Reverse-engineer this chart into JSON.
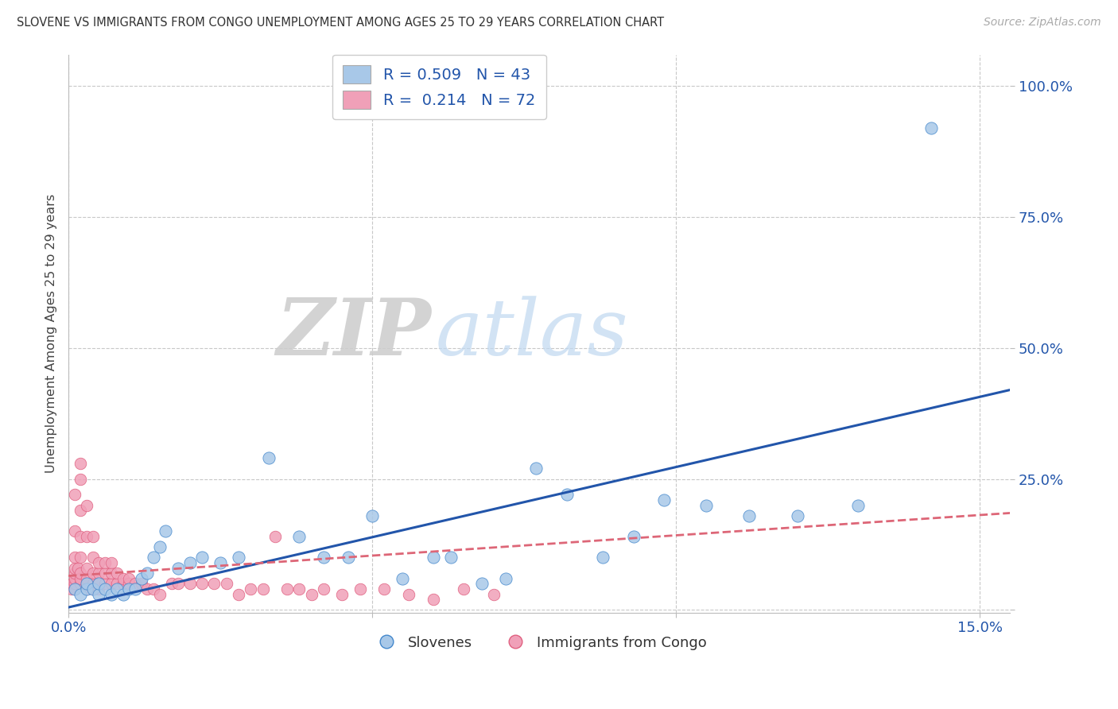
{
  "title": "SLOVENE VS IMMIGRANTS FROM CONGO UNEMPLOYMENT AMONG AGES 25 TO 29 YEARS CORRELATION CHART",
  "source": "Source: ZipAtlas.com",
  "ylabel": "Unemployment Among Ages 25 to 29 years",
  "xlim": [
    0.0,
    0.155
  ],
  "ylim": [
    -0.005,
    1.06
  ],
  "slovene_color": "#a8c8e8",
  "congo_color": "#f0a0b8",
  "slovene_edge_color": "#4488cc",
  "congo_edge_color": "#e06080",
  "slovene_line_color": "#2255aa",
  "congo_line_color": "#dd6677",
  "slovene_R": "0.509",
  "slovene_N": "43",
  "congo_R": "0.214",
  "congo_N": "72",
  "background_color": "#ffffff",
  "grid_color": "#c8c8c8",
  "slovene_trend_x0": 0.0,
  "slovene_trend_y0": 0.005,
  "slovene_trend_x1": 0.155,
  "slovene_trend_y1": 0.42,
  "congo_trend_x0": 0.0,
  "congo_trend_y0": 0.065,
  "congo_trend_x1": 0.155,
  "congo_trend_y1": 0.185,
  "slovene_x": [
    0.001,
    0.002,
    0.003,
    0.003,
    0.004,
    0.005,
    0.005,
    0.006,
    0.007,
    0.008,
    0.009,
    0.01,
    0.011,
    0.012,
    0.013,
    0.014,
    0.015,
    0.016,
    0.018,
    0.02,
    0.022,
    0.025,
    0.028,
    0.033,
    0.038,
    0.042,
    0.046,
    0.05,
    0.055,
    0.06,
    0.063,
    0.068,
    0.072,
    0.077,
    0.082,
    0.088,
    0.093,
    0.098,
    0.105,
    0.112,
    0.12,
    0.13,
    0.142
  ],
  "slovene_y": [
    0.04,
    0.03,
    0.04,
    0.05,
    0.04,
    0.03,
    0.05,
    0.04,
    0.03,
    0.04,
    0.03,
    0.04,
    0.04,
    0.06,
    0.07,
    0.1,
    0.12,
    0.15,
    0.08,
    0.09,
    0.1,
    0.09,
    0.1,
    0.29,
    0.14,
    0.1,
    0.1,
    0.18,
    0.06,
    0.1,
    0.1,
    0.05,
    0.06,
    0.27,
    0.22,
    0.1,
    0.14,
    0.21,
    0.2,
    0.18,
    0.18,
    0.2,
    0.92
  ],
  "congo_x": [
    0.0005,
    0.0007,
    0.001,
    0.001,
    0.001,
    0.001,
    0.001,
    0.001,
    0.001,
    0.001,
    0.0015,
    0.002,
    0.002,
    0.002,
    0.002,
    0.002,
    0.002,
    0.002,
    0.002,
    0.003,
    0.003,
    0.003,
    0.003,
    0.003,
    0.003,
    0.004,
    0.004,
    0.004,
    0.004,
    0.004,
    0.005,
    0.005,
    0.005,
    0.005,
    0.006,
    0.006,
    0.006,
    0.007,
    0.007,
    0.007,
    0.008,
    0.008,
    0.009,
    0.009,
    0.01,
    0.01,
    0.011,
    0.012,
    0.013,
    0.014,
    0.015,
    0.017,
    0.018,
    0.02,
    0.022,
    0.024,
    0.026,
    0.028,
    0.03,
    0.032,
    0.034,
    0.036,
    0.038,
    0.04,
    0.042,
    0.045,
    0.048,
    0.052,
    0.056,
    0.06,
    0.065,
    0.07
  ],
  "congo_y": [
    0.04,
    0.05,
    0.04,
    0.05,
    0.06,
    0.07,
    0.08,
    0.1,
    0.15,
    0.22,
    0.08,
    0.05,
    0.06,
    0.07,
    0.1,
    0.14,
    0.19,
    0.25,
    0.28,
    0.04,
    0.05,
    0.06,
    0.08,
    0.14,
    0.2,
    0.04,
    0.05,
    0.07,
    0.1,
    0.14,
    0.04,
    0.05,
    0.07,
    0.09,
    0.05,
    0.07,
    0.09,
    0.05,
    0.07,
    0.09,
    0.05,
    0.07,
    0.05,
    0.06,
    0.05,
    0.06,
    0.05,
    0.05,
    0.04,
    0.04,
    0.03,
    0.05,
    0.05,
    0.05,
    0.05,
    0.05,
    0.05,
    0.03,
    0.04,
    0.04,
    0.14,
    0.04,
    0.04,
    0.03,
    0.04,
    0.03,
    0.04,
    0.04,
    0.03,
    0.02,
    0.04,
    0.03
  ]
}
